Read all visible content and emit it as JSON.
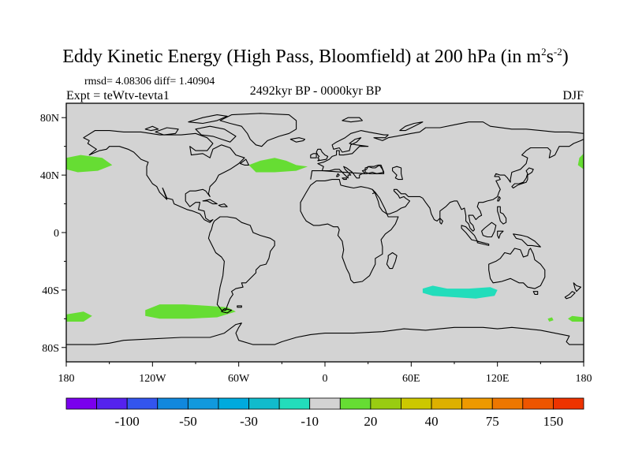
{
  "title": {
    "text": "Eddy Kinetic Energy (High Pass, Bloomfield) at 200 hPa (in m",
    "sup1": "2",
    "mid": "s",
    "sup2": "-2",
    "close": ")"
  },
  "stats": "rmsd= 4.08306 diff= 1.40904",
  "expt": "Expt = teWtv-tevta1",
  "period": "2492kyr BP - 0000kyr BP",
  "season": "DJF",
  "map": {
    "projection": "cylindrical-equidistant",
    "lon_range": [
      -180,
      180
    ],
    "lat_range": [
      -90,
      90
    ],
    "background_color": "#d3d3d3",
    "lat_ticks": [
      {
        "value": 80,
        "label": "80N"
      },
      {
        "value": 40,
        "label": "40N"
      },
      {
        "value": 0,
        "label": "0"
      },
      {
        "value": -40,
        "label": "40S"
      },
      {
        "value": -80,
        "label": "80S"
      }
    ],
    "lon_ticks": [
      {
        "value": -180,
        "label": "180"
      },
      {
        "value": -120,
        "label": "120W"
      },
      {
        "value": -60,
        "label": "60W"
      },
      {
        "value": 0,
        "label": "0"
      },
      {
        "value": 60,
        "label": "60E"
      },
      {
        "value": 120,
        "label": "120E"
      },
      {
        "value": 180,
        "label": "180"
      }
    ],
    "anomaly_regions": [
      {
        "name": "north-pacific-positive",
        "color": "#66dd33",
        "points": [
          [
            -180,
            52
          ],
          [
            -170,
            54
          ],
          [
            -155,
            52
          ],
          [
            -148,
            47
          ],
          [
            -158,
            43
          ],
          [
            -172,
            42
          ],
          [
            -180,
            44
          ]
        ]
      },
      {
        "name": "north-pacific-east-edge",
        "color": "#66dd33",
        "points": [
          [
            180,
            55
          ],
          [
            177,
            52
          ],
          [
            176,
            47
          ],
          [
            180,
            44
          ]
        ]
      },
      {
        "name": "north-atlantic-positive",
        "color": "#66dd33",
        "points": [
          [
            -53,
            47
          ],
          [
            -45,
            50
          ],
          [
            -35,
            52
          ],
          [
            -27,
            50
          ],
          [
            -20,
            47
          ],
          [
            -12,
            46
          ],
          [
            -20,
            43
          ],
          [
            -35,
            42
          ],
          [
            -48,
            42
          ]
        ]
      },
      {
        "name": "south-pacific-positive",
        "color": "#66dd33",
        "points": [
          [
            -125,
            -54
          ],
          [
            -115,
            -50
          ],
          [
            -98,
            -50
          ],
          [
            -82,
            -51
          ],
          [
            -68,
            -52
          ],
          [
            -62,
            -55
          ],
          [
            -75,
            -59
          ],
          [
            -95,
            -60
          ],
          [
            -115,
            -60
          ],
          [
            -125,
            -58
          ]
        ]
      },
      {
        "name": "southeast-pacific-west-edge",
        "color": "#66dd33",
        "points": [
          [
            -180,
            -57
          ],
          [
            -168,
            -55
          ],
          [
            -162,
            -58
          ],
          [
            -168,
            -62
          ],
          [
            -180,
            -62
          ]
        ]
      },
      {
        "name": "south-pacific-east-edge",
        "color": "#66dd33",
        "points": [
          [
            180,
            -59
          ],
          [
            172,
            -58
          ],
          [
            169,
            -60
          ],
          [
            172,
            -62
          ],
          [
            180,
            -62
          ]
        ]
      },
      {
        "name": "south-pacific-dot",
        "color": "#66dd33",
        "points": [
          [
            155,
            -60
          ],
          [
            158,
            -59
          ],
          [
            159,
            -61
          ],
          [
            156,
            -62
          ]
        ]
      },
      {
        "name": "indian-ocean-negative",
        "color": "#22ddbb",
        "points": [
          [
            68,
            -39
          ],
          [
            75,
            -37
          ],
          [
            85,
            -39
          ],
          [
            100,
            -39
          ],
          [
            115,
            -38
          ],
          [
            120,
            -40
          ],
          [
            118,
            -44
          ],
          [
            105,
            -46
          ],
          [
            90,
            -45
          ],
          [
            75,
            -44
          ],
          [
            68,
            -42
          ]
        ]
      }
    ]
  },
  "colorbar": {
    "colors": [
      "#7a00ee",
      "#5522ee",
      "#3355ee",
      "#1188dd",
      "#1199dd",
      "#00aadd",
      "#11bbcc",
      "#22ddbb",
      "#d3d3d3",
      "#66dd33",
      "#99cc11",
      "#ccc800",
      "#ddb000",
      "#ee9900",
      "#ee7700",
      "#ee5500",
      "#ee3300"
    ],
    "labels": [
      {
        "after_box": 1,
        "text": "-100"
      },
      {
        "after_box": 3,
        "text": "-50"
      },
      {
        "after_box": 5,
        "text": "-30"
      },
      {
        "after_box": 7,
        "text": "-10"
      },
      {
        "after_box": 9,
        "text": "20"
      },
      {
        "after_box": 11,
        "text": "40"
      },
      {
        "after_box": 13,
        "text": "75"
      },
      {
        "after_box": 15,
        "text": "150"
      }
    ]
  }
}
